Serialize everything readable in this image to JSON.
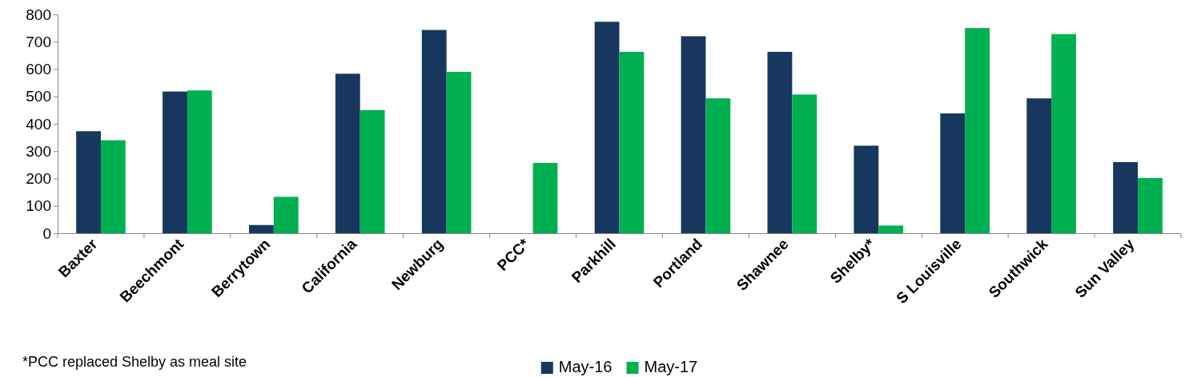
{
  "chart_data": {
    "type": "bar",
    "categories": [
      "Baxter",
      "Beechmont",
      "Berrytown",
      "California",
      "Newburg",
      "PCC*",
      "Parkhill",
      "Portland",
      "Shawnee",
      "Shelby*",
      "S Louisville",
      "Southwick",
      "Sun Valley"
    ],
    "series": [
      {
        "name": "May-16",
        "color": "#17375e",
        "values": [
          373,
          518,
          30,
          583,
          743,
          null,
          773,
          720,
          663,
          320,
          438,
          493,
          260
        ]
      },
      {
        "name": "May-17",
        "color": "#00b050",
        "values": [
          340,
          522,
          133,
          450,
          590,
          257,
          663,
          493,
          507,
          28,
          750,
          728,
          202
        ]
      }
    ],
    "ylim": [
      0,
      800
    ],
    "yticks": [
      0,
      100,
      200,
      300,
      400,
      500,
      600,
      700,
      800
    ],
    "grid": false,
    "legend": "bottom",
    "annotations": [
      "*PCC replaced Shelby as meal site"
    ]
  }
}
